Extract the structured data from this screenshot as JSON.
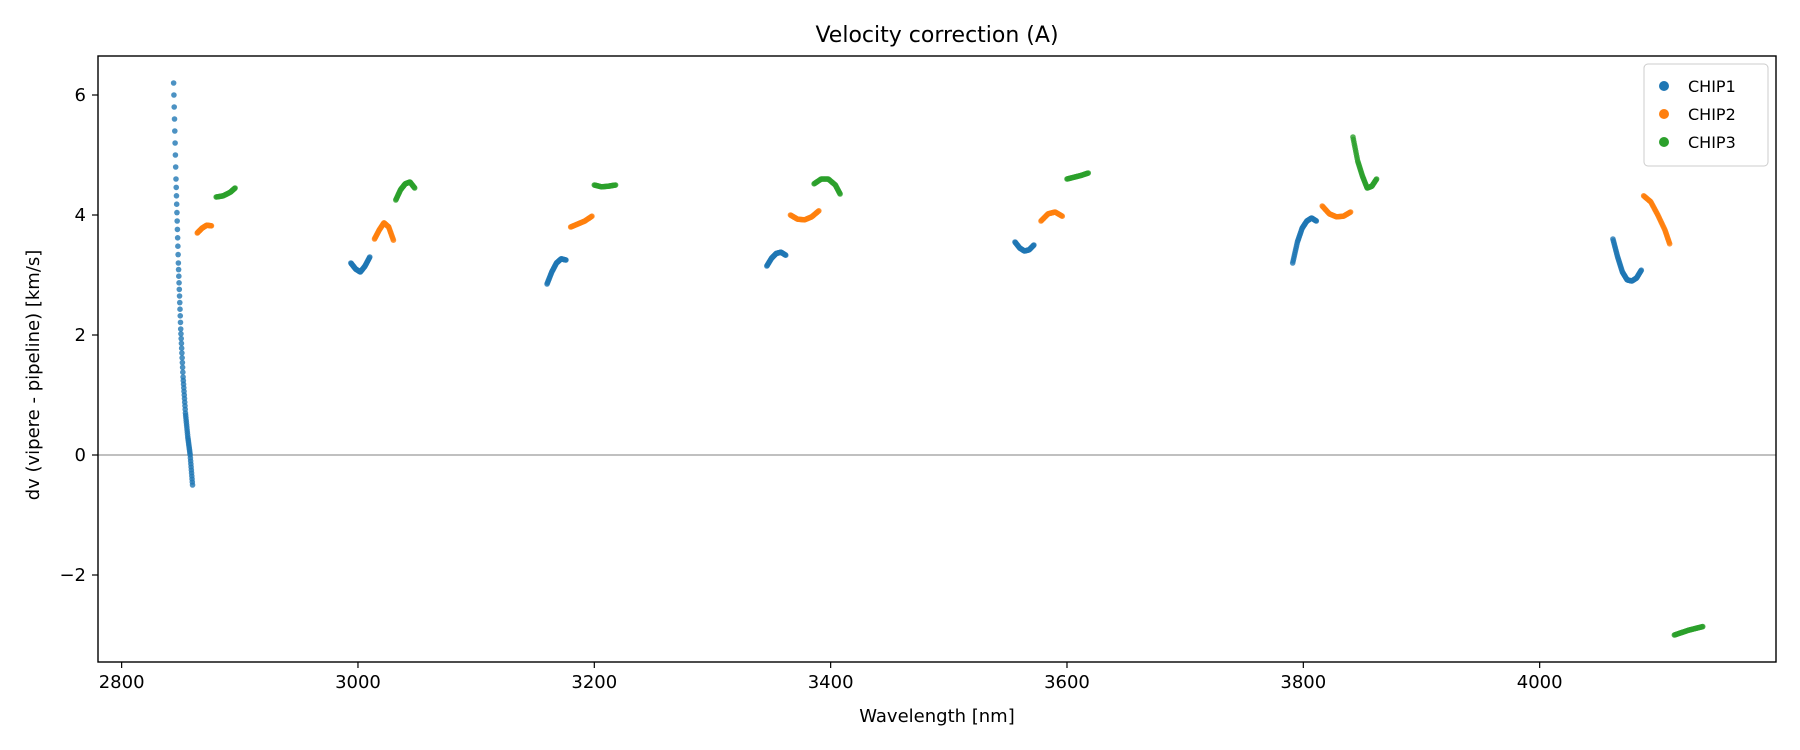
{
  "chart_data": {
    "type": "scatter",
    "title": "Velocity correction (A)",
    "xlabel": "Wavelength [nm]",
    "ylabel": "dv (vipere - pipeline) [km/s]",
    "xlim": [
      2780,
      4200
    ],
    "ylim": [
      -3.45,
      6.65
    ],
    "xticks": [
      2800,
      3000,
      3200,
      3400,
      3600,
      3800,
      4000
    ],
    "yticks": [
      -2,
      0,
      2,
      4,
      6
    ],
    "reference_line_y": 0,
    "legend_position": "top-right",
    "series": [
      {
        "name": "CHIP1",
        "color": "#1f77b4",
        "segments": [
          {
            "x": [
              2844,
              2846,
              2848,
              2850,
              2852,
              2854,
              2856,
              2858,
              2860
            ],
            "y": [
              6.2,
              4.6,
              3.2,
              2.1,
              1.3,
              0.7,
              0.3,
              0.0,
              -0.5
            ]
          },
          {
            "x": [
              2994,
              2998,
              3002,
              3006,
              3010
            ],
            "y": [
              3.2,
              3.1,
              3.05,
              3.15,
              3.3
            ]
          },
          {
            "x": [
              3160,
              3164,
              3168,
              3172,
              3176
            ],
            "y": [
              2.85,
              3.05,
              3.2,
              3.27,
              3.25
            ]
          },
          {
            "x": [
              3346,
              3350,
              3354,
              3358,
              3362
            ],
            "y": [
              3.15,
              3.28,
              3.36,
              3.38,
              3.33
            ]
          },
          {
            "x": [
              3556,
              3560,
              3564,
              3568,
              3572
            ],
            "y": [
              3.55,
              3.45,
              3.4,
              3.42,
              3.5
            ]
          },
          {
            "x": [
              3791,
              3795,
              3799,
              3803,
              3807,
              3811
            ],
            "y": [
              3.2,
              3.55,
              3.78,
              3.9,
              3.95,
              3.9
            ]
          },
          {
            "x": [
              4062,
              4066,
              4070,
              4074,
              4078,
              4082,
              4086
            ],
            "y": [
              3.6,
              3.3,
              3.05,
              2.92,
              2.9,
              2.95,
              3.08
            ]
          }
        ]
      },
      {
        "name": "CHIP2",
        "color": "#ff7f0e",
        "segments": [
          {
            "x": [
              2864,
              2868,
              2872,
              2876
            ],
            "y": [
              3.7,
              3.78,
              3.83,
              3.82
            ]
          },
          {
            "x": [
              3014,
              3018,
              3022,
              3026,
              3030
            ],
            "y": [
              3.6,
              3.75,
              3.87,
              3.8,
              3.58
            ]
          },
          {
            "x": [
              3180,
              3186,
              3192,
              3198
            ],
            "y": [
              3.8,
              3.85,
              3.9,
              3.98
            ]
          },
          {
            "x": [
              3366,
              3372,
              3378,
              3384,
              3390
            ],
            "y": [
              4.0,
              3.93,
              3.92,
              3.97,
              4.07
            ]
          },
          {
            "x": [
              3578,
              3584,
              3590,
              3596
            ],
            "y": [
              3.9,
              4.02,
              4.05,
              3.98
            ]
          },
          {
            "x": [
              3816,
              3822,
              3828,
              3834,
              3840
            ],
            "y": [
              4.15,
              4.02,
              3.97,
              3.98,
              4.05
            ]
          },
          {
            "x": [
              4088,
              4094,
              4100,
              4106,
              4110
            ],
            "y": [
              4.32,
              4.22,
              4.0,
              3.75,
              3.52
            ]
          }
        ]
      },
      {
        "name": "CHIP3",
        "color": "#2ca02c",
        "segments": [
          {
            "x": [
              2880,
              2886,
              2892,
              2896
            ],
            "y": [
              4.3,
              4.32,
              4.38,
              4.45
            ]
          },
          {
            "x": [
              3032,
              3036,
              3040,
              3044,
              3048
            ],
            "y": [
              4.25,
              4.42,
              4.52,
              4.55,
              4.45
            ]
          },
          {
            "x": [
              3200,
              3206,
              3212,
              3218
            ],
            "y": [
              4.5,
              4.47,
              4.48,
              4.5
            ]
          },
          {
            "x": [
              3386,
              3392,
              3398,
              3404,
              3408
            ],
            "y": [
              4.52,
              4.6,
              4.6,
              4.5,
              4.35
            ]
          },
          {
            "x": [
              3600,
              3606,
              3612,
              3618
            ],
            "y": [
              4.6,
              4.63,
              4.66,
              4.7
            ]
          },
          {
            "x": [
              3842,
              3846,
              3850,
              3854,
              3858,
              3862
            ],
            "y": [
              5.3,
              4.9,
              4.65,
              4.45,
              4.48,
              4.6
            ]
          },
          {
            "x": [
              4114,
              4120,
              4126,
              4132,
              4138
            ],
            "y": [
              -3.0,
              -2.96,
              -2.92,
              -2.89,
              -2.86
            ]
          }
        ]
      }
    ]
  }
}
